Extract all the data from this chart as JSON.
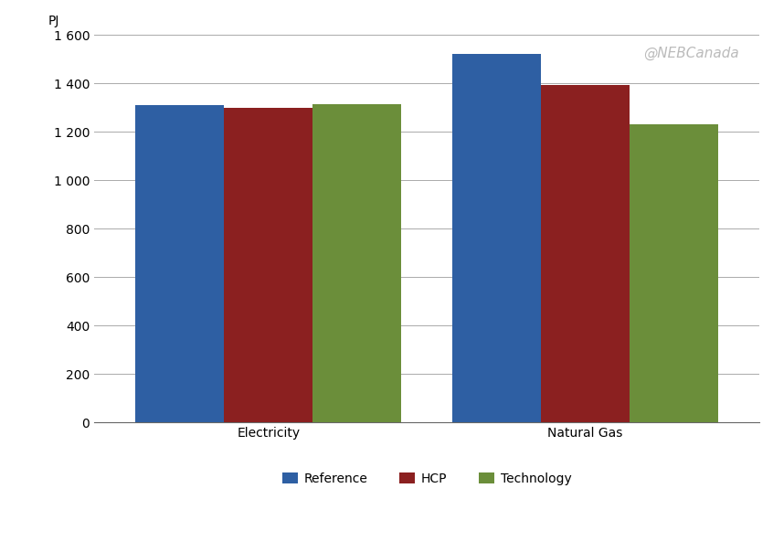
{
  "categories": [
    "Electricity",
    "Natural Gas"
  ],
  "series": [
    {
      "label": "Reference",
      "color": "#2E5FA3",
      "values": [
        1310,
        1520
      ]
    },
    {
      "label": "HCP",
      "color": "#8B2020",
      "values": [
        1300,
        1395
      ]
    },
    {
      "label": "Technology",
      "color": "#6B8E3A",
      "values": [
        1315,
        1230
      ]
    }
  ],
  "ylabel": "PJ",
  "ylim": [
    0,
    1600
  ],
  "yticks": [
    0,
    200,
    400,
    600,
    800,
    1000,
    1200,
    1400,
    1600
  ],
  "ytick_labels": [
    "0",
    "200",
    "400",
    "600",
    "800",
    "1 000",
    "1 200",
    "1 400",
    "1 600"
  ],
  "watermark": "@NEBCanada",
  "background_color": "#FFFFFF",
  "plot_bg_color": "#FFFFFF",
  "grid_color": "#AAAAAA",
  "bar_width": 0.28,
  "legend_fontsize": 10,
  "ylabel_fontsize": 10,
  "tick_fontsize": 10,
  "watermark_fontsize": 11,
  "watermark_color": "#BBBBBB",
  "figsize": [
    8.46,
    6.04
  ],
  "dpi": 100
}
